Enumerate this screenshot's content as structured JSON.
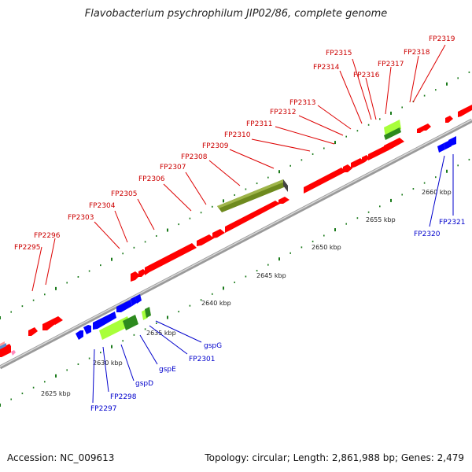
{
  "title": "Flavobacterium psychrophilum JIP02/86, complete genome",
  "footer": {
    "accession": "Accession: NC_009613",
    "summary": "Topology: circular; Length: 2,861,988 bp; Genes: 2,479"
  },
  "colors": {
    "forward_gene": "#ff0000",
    "reverse_gene": "#0000ff",
    "rna_light": "#a8ff3a",
    "rna_dark": "#2d8a1e",
    "olive": "#6e8a1e",
    "backbone": "#888888",
    "tick": "#1a7a1a",
    "forward_label": "#cc0000",
    "reverse_label": "#0000cc"
  },
  "scale_labels": [
    "2625 kbp",
    "2630 kbp",
    "2635 kbp",
    "2640 kbp",
    "2645 kbp",
    "2650 kbp",
    "2655 kbp",
    "2660 kbp"
  ],
  "forward_labels": [
    "FP2295",
    "FP2296",
    "FP2303",
    "FP2304",
    "FP2305",
    "FP2306",
    "FP2307",
    "FP2308",
    "FP2309",
    "FP2310",
    "FP2311",
    "FP2312",
    "FP2313",
    "FP2314",
    "FP2315",
    "FP2316",
    "FP2317",
    "FP2318",
    "FP2319"
  ],
  "reverse_labels": [
    "FP2297",
    "FP2298",
    "gspD",
    "gspE",
    "FP2301",
    "gspG",
    "FP2320",
    "FP2321"
  ]
}
